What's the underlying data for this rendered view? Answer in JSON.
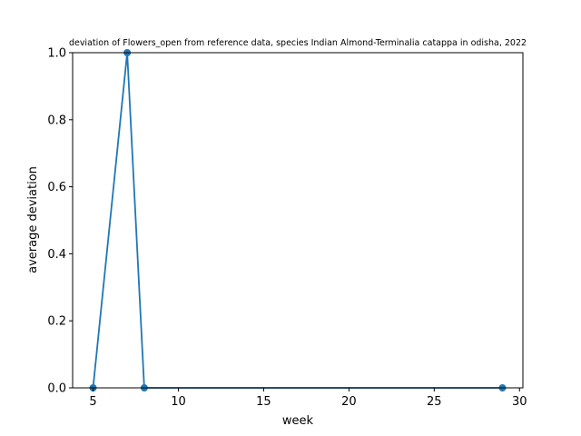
{
  "chart_data": {
    "type": "line",
    "title": "deviation of Flowers_open from reference data, species Indian Almond-Terminalia catappa in odisha, 2022",
    "xlabel": "week",
    "ylabel": "average deviation",
    "xlim": [
      3.8,
      30.2
    ],
    "ylim": [
      0,
      1.0
    ],
    "xticks": [
      5,
      10,
      15,
      20,
      25,
      30
    ],
    "yticks": [
      0.0,
      0.2,
      0.4,
      0.6,
      0.8,
      1.0
    ],
    "xtick_labels": [
      "5",
      "10",
      "15",
      "20",
      "25",
      "30"
    ],
    "ytick_labels": [
      "0.0",
      "0.2",
      "0.4",
      "0.6",
      "0.8",
      "1.0"
    ],
    "grid": false,
    "series": [
      {
        "color": "#1f77b4",
        "x": [
          5,
          7,
          8,
          29
        ],
        "y": [
          0.0,
          1.0,
          0.0,
          0.0
        ]
      }
    ]
  }
}
